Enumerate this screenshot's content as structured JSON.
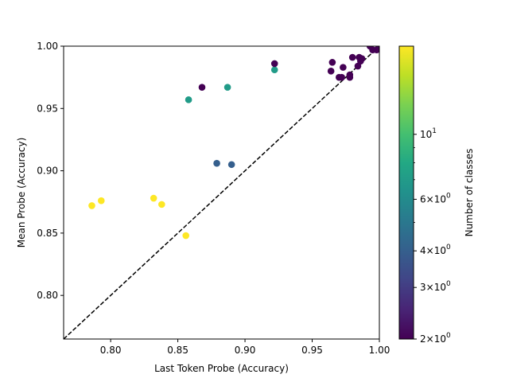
{
  "chart_data": {
    "type": "scatter",
    "title": "",
    "xlabel": "Last Token Probe (Accuracy)",
    "ylabel": "Mean Probe (Accuracy)",
    "xlim": [
      0.765,
      1.0
    ],
    "ylim": [
      0.765,
      1.0
    ],
    "xticks": [
      0.8,
      0.85,
      0.9,
      0.95,
      1.0
    ],
    "xtick_labels": [
      "0.80",
      "0.85",
      "0.90",
      "0.95",
      "1.00"
    ],
    "yticks": [
      0.8,
      0.85,
      0.9,
      0.95,
      1.0
    ],
    "ytick_labels": [
      "0.80",
      "0.85",
      "0.90",
      "0.95",
      "1.00"
    ],
    "reference_line": "y = x (dashed)",
    "grid": false,
    "colormap": "viridis",
    "colorbar": {
      "label": "Number of classes",
      "scale": "log",
      "range": [
        2,
        20
      ],
      "ticks": [
        {
          "value": 2,
          "base": "2",
          "exp": "0"
        },
        {
          "value": 3,
          "base": "3",
          "exp": "0"
        },
        {
          "value": 4,
          "base": "4",
          "exp": "0"
        },
        {
          "value": 6,
          "base": "6",
          "exp": "0"
        },
        {
          "value": 10,
          "base": "10",
          "exp": "1"
        }
      ]
    },
    "points": [
      {
        "x": 0.786,
        "y": 0.872,
        "classes": 20
      },
      {
        "x": 0.793,
        "y": 0.876,
        "classes": 20
      },
      {
        "x": 0.832,
        "y": 0.878,
        "classes": 20
      },
      {
        "x": 0.838,
        "y": 0.873,
        "classes": 20
      },
      {
        "x": 0.856,
        "y": 0.848,
        "classes": 20
      },
      {
        "x": 0.858,
        "y": 0.957,
        "classes": 7
      },
      {
        "x": 0.868,
        "y": 0.967,
        "classes": 2
      },
      {
        "x": 0.879,
        "y": 0.906,
        "classes": 4
      },
      {
        "x": 0.887,
        "y": 0.967,
        "classes": 7
      },
      {
        "x": 0.89,
        "y": 0.905,
        "classes": 4
      },
      {
        "x": 0.922,
        "y": 0.981,
        "classes": 7
      },
      {
        "x": 0.922,
        "y": 0.986,
        "classes": 2
      },
      {
        "x": 0.964,
        "y": 0.98,
        "classes": 2
      },
      {
        "x": 0.965,
        "y": 0.987,
        "classes": 2
      },
      {
        "x": 0.97,
        "y": 0.975,
        "classes": 2
      },
      {
        "x": 0.972,
        "y": 0.975,
        "classes": 2
      },
      {
        "x": 0.973,
        "y": 0.983,
        "classes": 2
      },
      {
        "x": 0.978,
        "y": 0.977,
        "classes": 2
      },
      {
        "x": 0.978,
        "y": 0.975,
        "classes": 2
      },
      {
        "x": 0.98,
        "y": 0.991,
        "classes": 2
      },
      {
        "x": 0.984,
        "y": 0.984,
        "classes": 2
      },
      {
        "x": 0.985,
        "y": 0.991,
        "classes": 2
      },
      {
        "x": 0.986,
        "y": 0.988,
        "classes": 2
      },
      {
        "x": 0.987,
        "y": 0.99,
        "classes": 2
      },
      {
        "x": 0.993,
        "y": 1.0,
        "classes": 2
      },
      {
        "x": 0.995,
        "y": 0.997,
        "classes": 2
      },
      {
        "x": 0.998,
        "y": 0.997,
        "classes": 2
      },
      {
        "x": 1.0,
        "y": 0.999,
        "classes": 2
      }
    ]
  }
}
